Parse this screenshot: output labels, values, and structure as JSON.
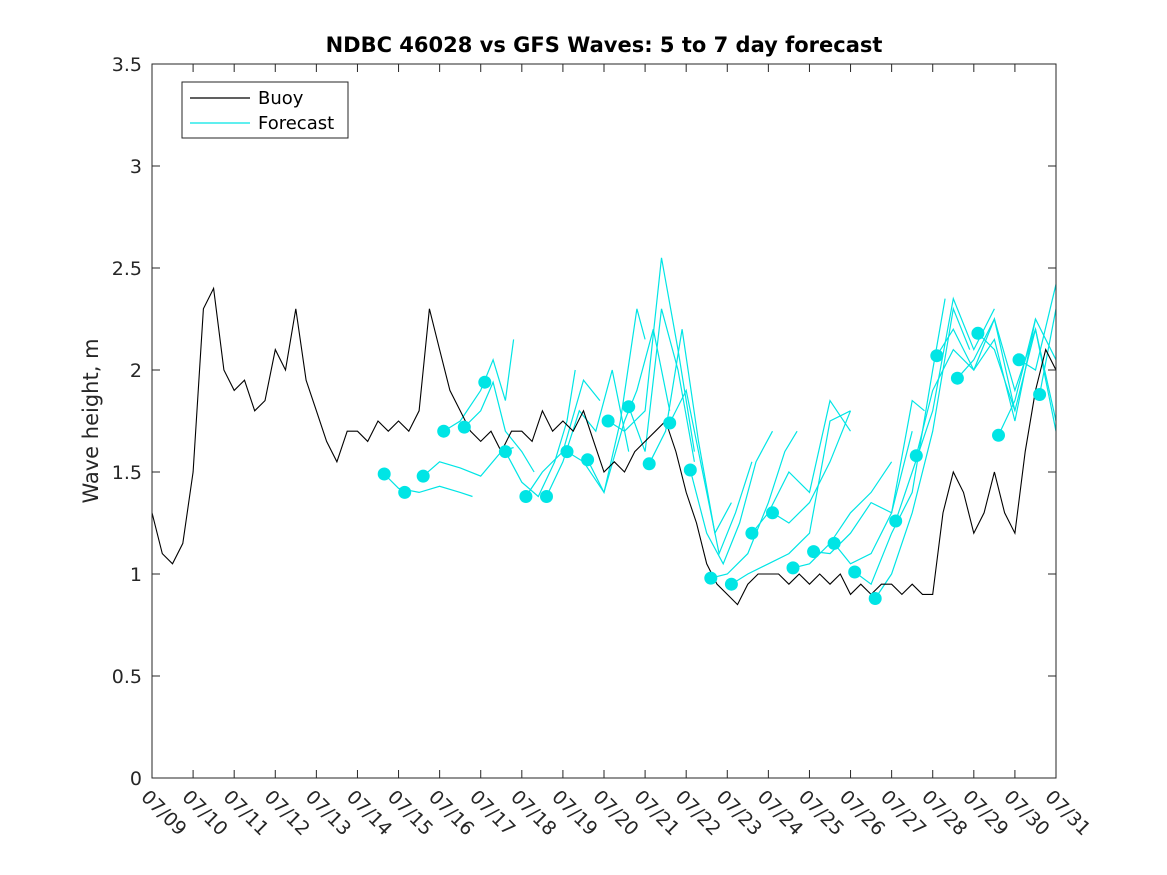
{
  "chart_data": {
    "type": "line",
    "title": "NDBC 46028 vs GFS Waves: 5 to 7 day forecast",
    "xlabel": "",
    "ylabel": "Wave height, m",
    "ylim": [
      0,
      3.5
    ],
    "yticks": [
      "0",
      "0.5",
      "1",
      "1.5",
      "2",
      "2.5",
      "3",
      "3.5"
    ],
    "xlim_day": [
      9,
      31
    ],
    "xticks": [
      "07/09",
      "07/10",
      "07/11",
      "07/12",
      "07/13",
      "07/14",
      "07/15",
      "07/16",
      "07/17",
      "07/18",
      "07/19",
      "07/20",
      "07/21",
      "07/22",
      "07/23",
      "07/24",
      "07/25",
      "07/26",
      "07/27",
      "07/28",
      "07/29",
      "07/30",
      "07/31"
    ],
    "grid": false,
    "legend": {
      "location": "top-left",
      "entries": [
        "Buoy",
        "Forecast"
      ]
    },
    "colors": {
      "buoy": "#000000",
      "forecast": "#00e5e5"
    },
    "series": [
      {
        "name": "Buoy",
        "x": [
          9.0,
          9.25,
          9.5,
          9.75,
          10.0,
          10.25,
          10.5,
          10.75,
          11.0,
          11.25,
          11.5,
          11.75,
          12.0,
          12.25,
          12.5,
          12.75,
          13.0,
          13.25,
          13.5,
          13.75,
          14.0,
          14.25,
          14.5,
          14.75,
          15.0,
          15.25,
          15.5,
          15.75,
          16.0,
          16.25,
          16.5,
          16.75,
          17.0,
          17.25,
          17.5,
          17.75,
          18.0,
          18.25,
          18.5,
          18.75,
          19.0,
          19.25,
          19.5,
          19.75,
          20.0,
          20.25,
          20.5,
          20.75,
          21.0,
          21.25,
          21.5,
          21.75,
          22.0,
          22.25,
          22.5,
          22.75,
          23.0,
          23.25,
          23.5,
          23.75,
          24.0,
          24.25,
          24.5,
          24.75,
          25.0,
          25.25,
          25.5,
          25.75,
          26.0,
          26.25,
          26.5,
          26.75,
          27.0,
          27.25,
          27.5,
          27.75,
          28.0,
          28.25,
          28.5,
          28.75,
          29.0,
          29.25,
          29.5,
          29.75,
          30.0,
          30.25,
          30.5,
          30.75,
          31.0
        ],
        "y": [
          1.3,
          1.1,
          1.05,
          1.15,
          1.5,
          2.3,
          2.4,
          2.0,
          1.9,
          1.95,
          1.8,
          1.85,
          2.1,
          2.0,
          2.3,
          1.95,
          1.8,
          1.65,
          1.55,
          1.7,
          1.7,
          1.65,
          1.75,
          1.7,
          1.75,
          1.7,
          1.8,
          2.3,
          2.1,
          1.9,
          1.8,
          1.7,
          1.65,
          1.7,
          1.6,
          1.7,
          1.7,
          1.65,
          1.8,
          1.7,
          1.75,
          1.7,
          1.8,
          1.65,
          1.5,
          1.55,
          1.5,
          1.6,
          1.65,
          1.7,
          1.75,
          1.6,
          1.4,
          1.25,
          1.05,
          0.95,
          0.9,
          0.85,
          0.95,
          1.0,
          1.0,
          1.0,
          0.95,
          1.0,
          0.95,
          1.0,
          0.95,
          1.0,
          0.9,
          0.95,
          0.9,
          0.95,
          0.95,
          0.9,
          0.95,
          0.9,
          0.9,
          1.3,
          1.5,
          1.4,
          1.2,
          1.3,
          1.5,
          1.3,
          1.2,
          1.6,
          1.9,
          2.1,
          2.0
        ]
      }
    ],
    "forecast_runs": [
      {
        "x": [
          14.65,
          15.0,
          15.5,
          16.0,
          16.5,
          16.8
        ],
        "y": [
          1.49,
          1.42,
          1.4,
          1.43,
          1.4,
          1.38
        ]
      },
      {
        "x": [
          15.6,
          16.0,
          16.5,
          17.0,
          17.5,
          17.8
        ],
        "y": [
          1.48,
          1.55,
          1.52,
          1.48,
          1.6,
          1.62
        ]
      },
      {
        "x": [
          16.1,
          16.5,
          17.0,
          17.3,
          17.6,
          17.8
        ],
        "y": [
          1.7,
          1.75,
          1.9,
          2.05,
          1.85,
          2.15
        ]
      },
      {
        "x": [
          16.6,
          17.0,
          17.3,
          17.6,
          18.0,
          18.3
        ],
        "y": [
          1.72,
          1.8,
          1.94,
          1.7,
          1.6,
          1.5
        ]
      },
      {
        "x": [
          17.6,
          18.0,
          18.4,
          18.8,
          19.1,
          19.3
        ],
        "y": [
          1.6,
          1.45,
          1.38,
          1.55,
          1.75,
          2.0
        ]
      },
      {
        "x": [
          18.1,
          18.5,
          19.0,
          19.5,
          19.9
        ],
        "y": [
          1.38,
          1.5,
          1.6,
          1.95,
          1.85
        ]
      },
      {
        "x": [
          18.6,
          19.0,
          19.4,
          19.8,
          20.2,
          20.6
        ],
        "y": [
          1.38,
          1.55,
          1.8,
          1.7,
          2.0,
          1.6
        ]
      },
      {
        "x": [
          19.1,
          19.5,
          20.0,
          20.4,
          20.8,
          21.0
        ],
        "y": [
          1.6,
          1.55,
          1.4,
          1.75,
          2.3,
          2.15
        ]
      },
      {
        "x": [
          19.6,
          20.0,
          20.5,
          20.8,
          21.2,
          21.6
        ],
        "y": [
          1.56,
          1.4,
          1.75,
          1.9,
          2.2,
          1.8
        ]
      },
      {
        "x": [
          20.1,
          20.5,
          21.0,
          21.4,
          21.8,
          22.2
        ],
        "y": [
          1.75,
          1.7,
          1.8,
          2.55,
          2.1,
          1.6
        ]
      },
      {
        "x": [
          20.6,
          21.0,
          21.4,
          21.8,
          22.2
        ],
        "y": [
          1.82,
          1.6,
          2.3,
          2.0,
          1.55
        ]
      },
      {
        "x": [
          21.1,
          21.5,
          21.9,
          22.3,
          22.7,
          23.1
        ],
        "y": [
          1.54,
          1.7,
          2.2,
          1.65,
          1.2,
          1.35
        ]
      },
      {
        "x": [
          21.6,
          22.0,
          22.4,
          22.8,
          23.2,
          23.6
        ],
        "y": [
          1.74,
          1.9,
          1.5,
          1.1,
          1.3,
          1.55
        ]
      },
      {
        "x": [
          22.1,
          22.5,
          22.9,
          23.3,
          23.7,
          24.1
        ],
        "y": [
          1.51,
          1.2,
          1.05,
          1.25,
          1.55,
          1.7
        ]
      },
      {
        "x": [
          22.6,
          23.0,
          23.5,
          24.0,
          24.4,
          24.7
        ],
        "y": [
          0.98,
          1.0,
          1.1,
          1.35,
          1.6,
          1.7
        ]
      },
      {
        "x": [
          23.1,
          23.5,
          24.0,
          24.5,
          25.0,
          25.5,
          26.0
        ],
        "y": [
          0.95,
          1.0,
          1.05,
          1.1,
          1.2,
          1.75,
          1.8
        ]
      },
      {
        "x": [
          23.6,
          24.0,
          24.5,
          25.0,
          25.5,
          26.0
        ],
        "y": [
          1.2,
          1.3,
          1.5,
          1.4,
          1.85,
          1.7
        ]
      },
      {
        "x": [
          24.1,
          24.5,
          25.0,
          25.5,
          26.0
        ],
        "y": [
          1.3,
          1.25,
          1.35,
          1.55,
          1.8
        ]
      },
      {
        "x": [
          24.6,
          25.0,
          25.5,
          26.0,
          26.5,
          27.0
        ],
        "y": [
          1.03,
          1.05,
          1.15,
          1.3,
          1.4,
          1.55
        ]
      },
      {
        "x": [
          25.1,
          25.5,
          26.0,
          26.5,
          27.0,
          27.5
        ],
        "y": [
          1.11,
          1.1,
          1.2,
          1.35,
          1.3,
          1.7
        ]
      },
      {
        "x": [
          25.6,
          26.0,
          26.5,
          27.0,
          27.5,
          27.8
        ],
        "y": [
          1.15,
          1.05,
          1.1,
          1.3,
          1.85,
          1.8
        ]
      },
      {
        "x": [
          26.1,
          26.5,
          27.0,
          27.5,
          28.0,
          28.3
        ],
        "y": [
          1.01,
          0.95,
          1.2,
          1.4,
          2.0,
          2.35
        ]
      },
      {
        "x": [
          26.6,
          27.0,
          27.5,
          28.0,
          28.5,
          28.9
        ],
        "y": [
          0.88,
          1.0,
          1.3,
          1.7,
          2.3,
          2.1
        ]
      },
      {
        "x": [
          27.1,
          27.5,
          28.0,
          28.5,
          29.0,
          29.5
        ],
        "y": [
          1.26,
          1.5,
          1.8,
          2.35,
          2.1,
          2.3
        ]
      },
      {
        "x": [
          27.6,
          28.0,
          28.5,
          29.0,
          29.5,
          30.0
        ],
        "y": [
          1.58,
          1.9,
          2.1,
          2.0,
          2.25,
          1.8
        ]
      },
      {
        "x": [
          28.1,
          28.5,
          29.0,
          29.5,
          30.0,
          30.5
        ],
        "y": [
          2.07,
          2.2,
          2.0,
          2.15,
          1.75,
          2.25
        ]
      },
      {
        "x": [
          28.6,
          29.0,
          29.5,
          30.0,
          30.5,
          31.0
        ],
        "y": [
          1.96,
          2.05,
          2.25,
          1.9,
          2.2,
          1.7
        ]
      },
      {
        "x": [
          29.1,
          29.5,
          30.0,
          30.5,
          31.0
        ],
        "y": [
          2.18,
          2.1,
          1.8,
          2.2,
          1.75
        ]
      },
      {
        "x": [
          29.6,
          30.0,
          30.5,
          31.0
        ],
        "y": [
          1.68,
          1.85,
          2.25,
          2.05
        ]
      },
      {
        "x": [
          30.1,
          30.5,
          31.0
        ],
        "y": [
          2.05,
          2.0,
          2.42
        ]
      },
      {
        "x": [
          30.6,
          31.0
        ],
        "y": [
          1.88,
          2.3
        ]
      }
    ],
    "forecast_markers": {
      "x": [
        14.65,
        15.15,
        15.6,
        16.1,
        16.6,
        17.1,
        17.6,
        18.1,
        18.6,
        19.1,
        19.6,
        20.1,
        20.6,
        21.1,
        21.6,
        22.1,
        22.6,
        23.1,
        23.6,
        24.1,
        24.6,
        25.1,
        25.6,
        26.1,
        26.6,
        27.1,
        27.6,
        28.1,
        28.6,
        29.1,
        29.6,
        30.1,
        30.6
      ],
      "y": [
        1.49,
        1.4,
        1.48,
        1.7,
        1.72,
        1.94,
        1.6,
        1.38,
        1.38,
        1.6,
        1.56,
        1.75,
        1.82,
        1.54,
        1.74,
        1.51,
        0.98,
        0.95,
        1.2,
        1.3,
        1.03,
        1.11,
        1.15,
        1.01,
        0.88,
        1.26,
        1.58,
        2.07,
        1.96,
        2.18,
        1.68,
        2.05,
        1.88
      ]
    }
  }
}
